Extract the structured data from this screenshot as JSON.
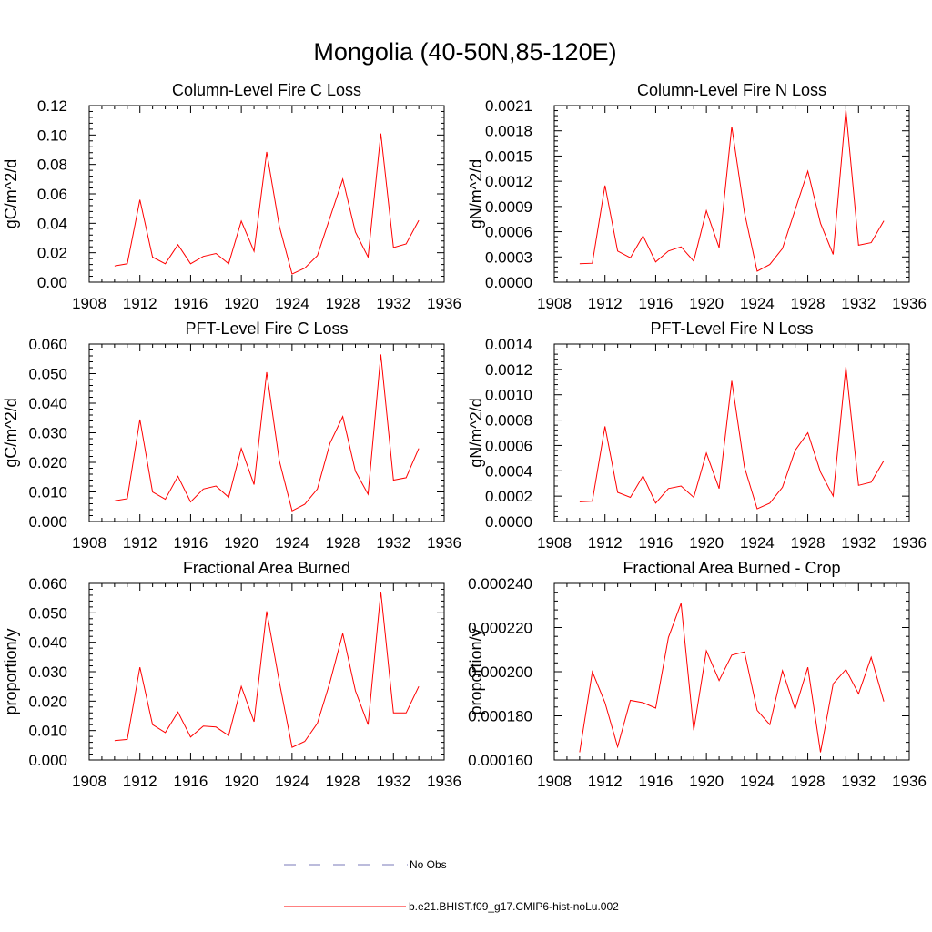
{
  "title": "Mongolia (40-50N,85-120E)",
  "colors": {
    "model": "#ff0000",
    "obs": "#7a7ab8",
    "axis": "#000000"
  },
  "legend": {
    "placement": "bottom-center",
    "items": [
      {
        "label": "No Obs",
        "style": "dashed",
        "color": "#7a7ab8"
      },
      {
        "label": "b.e21.BHIST.f09_g17.CMIP6-hist-noLu.002",
        "style": "solid",
        "color": "#ff0000"
      }
    ]
  },
  "chart_data": [
    {
      "type": "line",
      "title": "Column-Level Fire C Loss",
      "ylabel": "gC/m^2/d",
      "xlim": [
        1908,
        1936
      ],
      "ylim": [
        0,
        0.12
      ],
      "xticks": [
        "1908",
        "1912",
        "1916",
        "1920",
        "1924",
        "1928",
        "1932",
        "1936"
      ],
      "yticks": [
        "0.00",
        "0.02",
        "0.04",
        "0.06",
        "0.08",
        "0.10",
        "0.12"
      ],
      "x": [
        1910,
        1911,
        1912,
        1913,
        1914,
        1915,
        1916,
        1917,
        1918,
        1919,
        1920,
        1921,
        1922,
        1923,
        1924,
        1925,
        1926,
        1927,
        1928,
        1929,
        1930,
        1931,
        1932,
        1933,
        1934
      ],
      "series": [
        {
          "values": [
            0.011,
            0.0125,
            0.056,
            0.017,
            0.0125,
            0.0255,
            0.0125,
            0.0175,
            0.0195,
            0.0125,
            0.0415,
            0.021,
            0.0885,
            0.038,
            0.0055,
            0.0095,
            0.018,
            0.044,
            0.07,
            0.034,
            0.017,
            0.101,
            0.0235,
            0.026,
            0.042
          ]
        }
      ]
    },
    {
      "type": "line",
      "title": "Column-Level Fire N Loss",
      "ylabel": "gN/m^2/d",
      "xlim": [
        1908,
        1936
      ],
      "ylim": [
        0,
        0.0021
      ],
      "xticks": [
        "1908",
        "1912",
        "1916",
        "1920",
        "1924",
        "1928",
        "1932",
        "1936"
      ],
      "yticks": [
        "0.0000",
        "0.0003",
        "0.0006",
        "0.0009",
        "0.0012",
        "0.0015",
        "0.0018",
        "0.0021"
      ],
      "x": [
        1910,
        1911,
        1912,
        1913,
        1914,
        1915,
        1916,
        1917,
        1918,
        1919,
        1920,
        1921,
        1922,
        1923,
        1924,
        1925,
        1926,
        1927,
        1928,
        1929,
        1930,
        1931,
        1932,
        1933,
        1934
      ],
      "series": [
        {
          "values": [
            0.00022,
            0.000225,
            0.00115,
            0.00037,
            0.00029,
            0.00055,
            0.00024,
            0.00037,
            0.00042,
            0.00025,
            0.00085,
            0.00041,
            0.00185,
            0.00083,
            0.00013,
            0.00021,
            0.0004,
            0.00086,
            0.00132,
            0.0007,
            0.00033,
            0.00205,
            0.00044,
            0.00047,
            0.00073
          ]
        }
      ]
    },
    {
      "type": "line",
      "title": "PFT-Level Fire C Loss",
      "ylabel": "gC/m^2/d",
      "xlim": [
        1908,
        1936
      ],
      "ylim": [
        0,
        0.06
      ],
      "xticks": [
        "1908",
        "1912",
        "1916",
        "1920",
        "1924",
        "1928",
        "1932",
        "1936"
      ],
      "yticks": [
        "0.000",
        "0.010",
        "0.020",
        "0.030",
        "0.040",
        "0.050",
        "0.060"
      ],
      "x": [
        1910,
        1911,
        1912,
        1913,
        1914,
        1915,
        1916,
        1917,
        1918,
        1919,
        1920,
        1921,
        1922,
        1923,
        1924,
        1925,
        1926,
        1927,
        1928,
        1929,
        1930,
        1931,
        1932,
        1933,
        1934
      ],
      "series": [
        {
          "values": [
            0.007,
            0.0077,
            0.0345,
            0.01,
            0.0075,
            0.0153,
            0.0066,
            0.011,
            0.012,
            0.0082,
            0.0247,
            0.0125,
            0.0505,
            0.0205,
            0.0036,
            0.0058,
            0.011,
            0.0265,
            0.0355,
            0.017,
            0.0092,
            0.0565,
            0.014,
            0.0148,
            0.0247
          ]
        }
      ]
    },
    {
      "type": "line",
      "title": "PFT-Level Fire N Loss",
      "ylabel": "gN/m^2/d",
      "xlim": [
        1908,
        1936
      ],
      "ylim": [
        0,
        0.0014
      ],
      "xticks": [
        "1908",
        "1912",
        "1916",
        "1920",
        "1924",
        "1928",
        "1932",
        "1936"
      ],
      "yticks": [
        "0.0000",
        "0.0002",
        "0.0004",
        "0.0006",
        "0.0008",
        "0.0010",
        "0.0012",
        "0.0014"
      ],
      "x": [
        1910,
        1911,
        1912,
        1913,
        1914,
        1915,
        1916,
        1917,
        1918,
        1919,
        1920,
        1921,
        1922,
        1923,
        1924,
        1925,
        1926,
        1927,
        1928,
        1929,
        1930,
        1931,
        1932,
        1933,
        1934
      ],
      "series": [
        {
          "values": [
            0.000155,
            0.00016,
            0.00075,
            0.00023,
            0.00019,
            0.00036,
            0.000145,
            0.00026,
            0.00028,
            0.00019,
            0.00054,
            0.00026,
            0.00111,
            0.00043,
            0.0001,
            0.000145,
            0.00027,
            0.00056,
            0.0007,
            0.00039,
            0.0002,
            0.00122,
            0.000285,
            0.00031,
            0.00048
          ]
        }
      ]
    },
    {
      "type": "line",
      "title": "Fractional Area Burned",
      "ylabel": "proportion/y",
      "xlim": [
        1908,
        1936
      ],
      "ylim": [
        0,
        0.06
      ],
      "xticks": [
        "1908",
        "1912",
        "1916",
        "1920",
        "1924",
        "1928",
        "1932",
        "1936"
      ],
      "yticks": [
        "0.000",
        "0.010",
        "0.020",
        "0.030",
        "0.040",
        "0.050",
        "0.060"
      ],
      "x": [
        1910,
        1911,
        1912,
        1913,
        1914,
        1915,
        1916,
        1917,
        1918,
        1919,
        1920,
        1921,
        1922,
        1923,
        1924,
        1925,
        1926,
        1927,
        1928,
        1929,
        1930,
        1931,
        1932,
        1933,
        1934
      ],
      "series": [
        {
          "values": [
            0.0066,
            0.007,
            0.0315,
            0.012,
            0.0093,
            0.0163,
            0.0078,
            0.0115,
            0.0112,
            0.0083,
            0.025,
            0.013,
            0.0505,
            0.0265,
            0.0043,
            0.0063,
            0.0125,
            0.0265,
            0.043,
            0.0235,
            0.012,
            0.0572,
            0.016,
            0.016,
            0.025
          ]
        }
      ]
    },
    {
      "type": "line",
      "title": "Fractional Area Burned - Crop",
      "ylabel": "proportion/y",
      "xlim": [
        1908,
        1936
      ],
      "ylim": [
        0.00016,
        0.00024
      ],
      "xticks": [
        "1908",
        "1912",
        "1916",
        "1920",
        "1924",
        "1928",
        "1932",
        "1936"
      ],
      "yticks": [
        "0.000160",
        "0.000180",
        "0.000200",
        "0.000220",
        "0.000240"
      ],
      "x": [
        1910,
        1911,
        1912,
        1913,
        1914,
        1915,
        1916,
        1917,
        1918,
        1919,
        1920,
        1921,
        1922,
        1923,
        1924,
        1925,
        1926,
        1927,
        1928,
        1929,
        1930,
        1931,
        1932,
        1933,
        1934
      ],
      "series": [
        {
          "values": [
            0.0001635,
            0.0002,
            0.000186,
            0.000166,
            0.000187,
            0.000186,
            0.0001835,
            0.0002155,
            0.000231,
            0.0001735,
            0.0002095,
            0.000196,
            0.0002075,
            0.000209,
            0.0001825,
            0.000176,
            0.0002005,
            0.000183,
            0.000202,
            0.0001635,
            0.0001945,
            0.000201,
            0.00019,
            0.0002065,
            0.0001865
          ]
        }
      ]
    }
  ]
}
